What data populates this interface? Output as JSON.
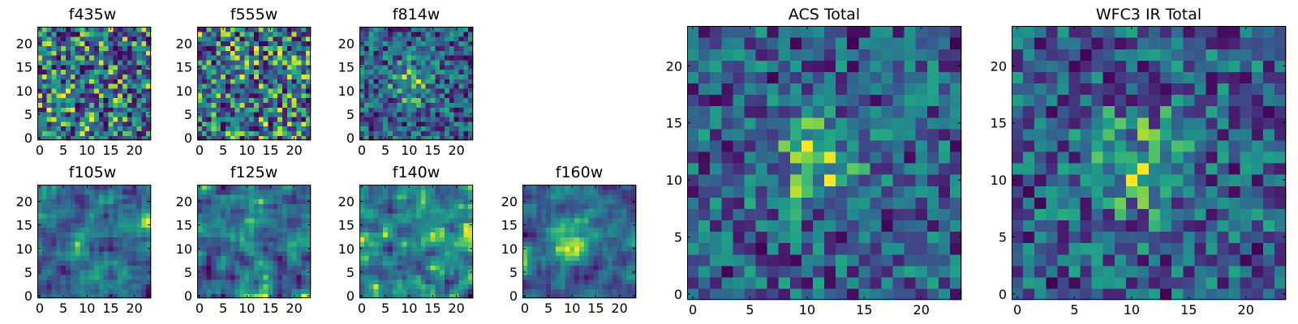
{
  "chart_data": [
    {
      "type": "heatmap",
      "title": "f435w",
      "grid_size": 24,
      "colormap": "viridis",
      "xticks": [
        0,
        5,
        10,
        15,
        20
      ],
      "yticks": [
        0,
        5,
        10,
        15,
        20
      ],
      "pattern": "uniform noise",
      "seed": 11
    },
    {
      "type": "heatmap",
      "title": "f555w",
      "grid_size": 24,
      "colormap": "viridis",
      "xticks": [
        0,
        5,
        10,
        15,
        20
      ],
      "yticks": [
        0,
        5,
        10,
        15,
        20
      ],
      "pattern": "uniform noise",
      "seed": 23
    },
    {
      "type": "heatmap",
      "title": "f814w",
      "grid_size": 24,
      "colormap": "viridis",
      "xticks": [
        0,
        5,
        10,
        15,
        20
      ],
      "yticks": [
        0,
        5,
        10,
        15,
        20
      ],
      "pattern": "noise with central bright source",
      "seed": 37
    },
    {
      "type": "heatmap",
      "title": "f105w",
      "grid_size": 24,
      "colormap": "viridis",
      "xticks": [
        0,
        5,
        10,
        15,
        20
      ],
      "yticks": [
        0,
        5,
        10,
        15,
        20
      ],
      "pattern": "correlated noise",
      "seed": 41
    },
    {
      "type": "heatmap",
      "title": "f125w",
      "grid_size": 24,
      "colormap": "viridis",
      "xticks": [
        0,
        5,
        10,
        15,
        20
      ],
      "yticks": [
        0,
        5,
        10,
        15,
        20
      ],
      "pattern": "correlated noise",
      "seed": 53
    },
    {
      "type": "heatmap",
      "title": "f140w",
      "grid_size": 24,
      "colormap": "viridis",
      "xticks": [
        0,
        5,
        10,
        15,
        20
      ],
      "yticks": [
        0,
        5,
        10,
        15,
        20
      ],
      "pattern": "correlated noise",
      "seed": 67
    },
    {
      "type": "heatmap",
      "title": "f160w",
      "grid_size": 24,
      "colormap": "viridis",
      "xticks": [
        0,
        5,
        10,
        15,
        20
      ],
      "yticks": [
        0,
        5,
        10,
        15,
        20
      ],
      "pattern": "correlated noise with central source",
      "seed": 79
    },
    {
      "type": "heatmap",
      "title": "ACS Total",
      "grid_size": 24,
      "colormap": "viridis",
      "xticks": [
        0,
        5,
        10,
        15,
        20
      ],
      "yticks": [
        0,
        5,
        10,
        15,
        20
      ],
      "pattern": "noise with central bright source",
      "seed": 83
    },
    {
      "type": "heatmap",
      "title": "WFC3 IR Total",
      "grid_size": 24,
      "colormap": "viridis",
      "xticks": [
        0,
        5,
        10,
        15,
        20
      ],
      "yticks": [
        0,
        5,
        10,
        15,
        20
      ],
      "pattern": "noise with central bright source",
      "seed": 97
    }
  ]
}
